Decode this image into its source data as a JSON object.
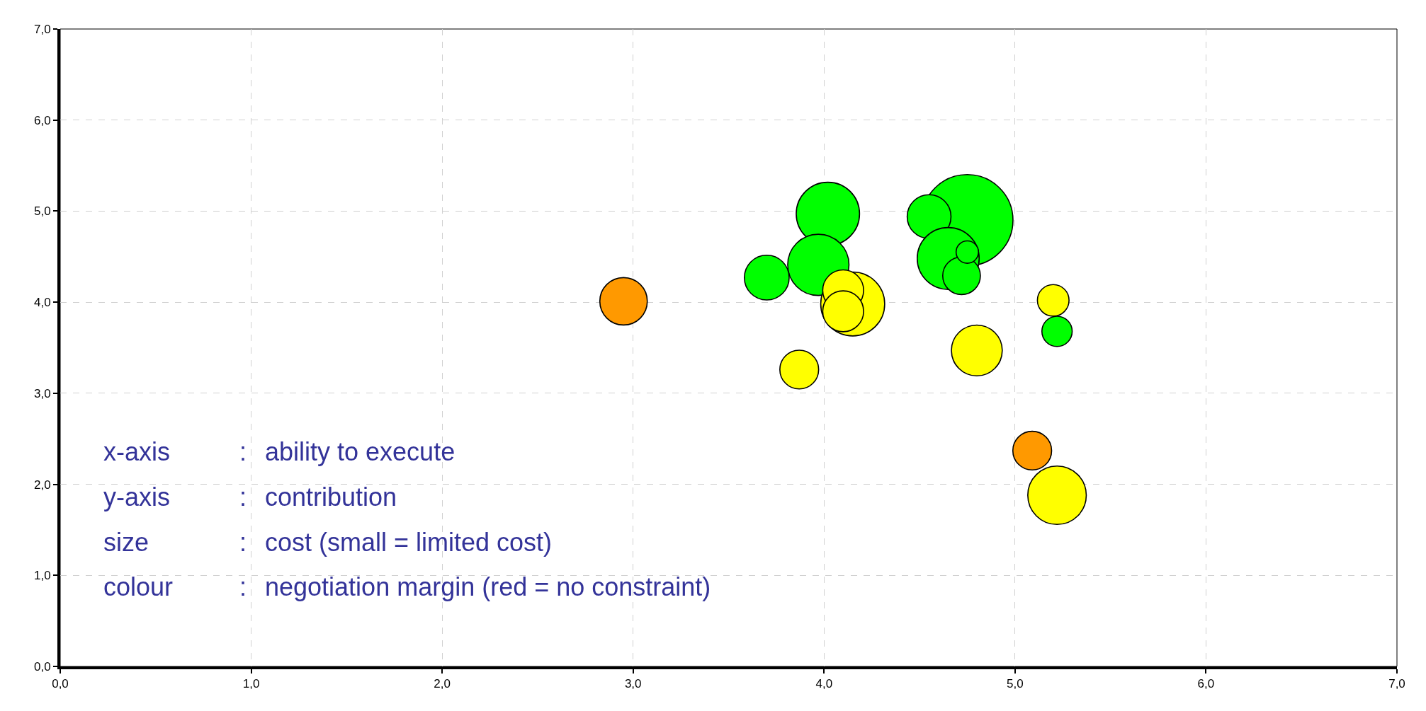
{
  "chart_data": {
    "type": "bubble",
    "x": [
      4.02,
      3.97,
      3.7,
      2.95,
      4.75,
      4.55,
      4.65,
      4.72,
      4.75,
      4.15,
      4.1,
      4.1,
      3.87,
      4.8,
      5.2,
      5.22,
      5.09,
      5.22
    ],
    "values": [
      4.97,
      4.41,
      4.27,
      4.01,
      4.9,
      4.94,
      4.48,
      4.29,
      4.55,
      3.98,
      4.13,
      3.9,
      3.26,
      3.47,
      4.02,
      3.68,
      2.37,
      1.88
    ],
    "sizes": [
      0.48,
      0.45,
      0.24,
      0.27,
      1,
      0.23,
      0.46,
      0.17,
      0.06,
      0.49,
      0.2,
      0.2,
      0.18,
      0.31,
      0.12,
      0.11,
      0.18,
      0.41
    ],
    "colors": [
      "#00ff00",
      "#00ff00",
      "#00ff00",
      "#ff9900",
      "#00ff00",
      "#00ff00",
      "#00ff00",
      "#00ff00",
      "#00ff00",
      "#ffff00",
      "#ffff00",
      "#ffff00",
      "#ffff00",
      "#ffff00",
      "#ffff00",
      "#00ff00",
      "#ff9900",
      "#ffff00"
    ],
    "xlim": [
      0,
      7
    ],
    "ylim": [
      0,
      7
    ],
    "xticks": [
      {
        "value": 0,
        "label": "0,0"
      },
      {
        "value": 1,
        "label": "1,0"
      },
      {
        "value": 2,
        "label": "2,0"
      },
      {
        "value": 3,
        "label": "3,0"
      },
      {
        "value": 4,
        "label": "4,0"
      },
      {
        "value": 5,
        "label": "5,0"
      },
      {
        "value": 6,
        "label": "6,0"
      },
      {
        "value": 7,
        "label": "7,0"
      }
    ],
    "yticks": [
      {
        "value": 0,
        "label": "0,0"
      },
      {
        "value": 1,
        "label": "1,0"
      },
      {
        "value": 2,
        "label": "2,0"
      },
      {
        "value": 3,
        "label": "3,0"
      },
      {
        "value": 4,
        "label": "4,0"
      },
      {
        "value": 5,
        "label": "5,0"
      },
      {
        "value": 6,
        "label": "6,0"
      },
      {
        "value": 7,
        "label": "7,0"
      }
    ],
    "grid": true,
    "annotations": [
      "x-axis : ability to execute",
      "y-axis : contribution",
      "size : cost (small = limited cost)",
      "colour : negotiation margin (red = no constraint)"
    ]
  }
}
